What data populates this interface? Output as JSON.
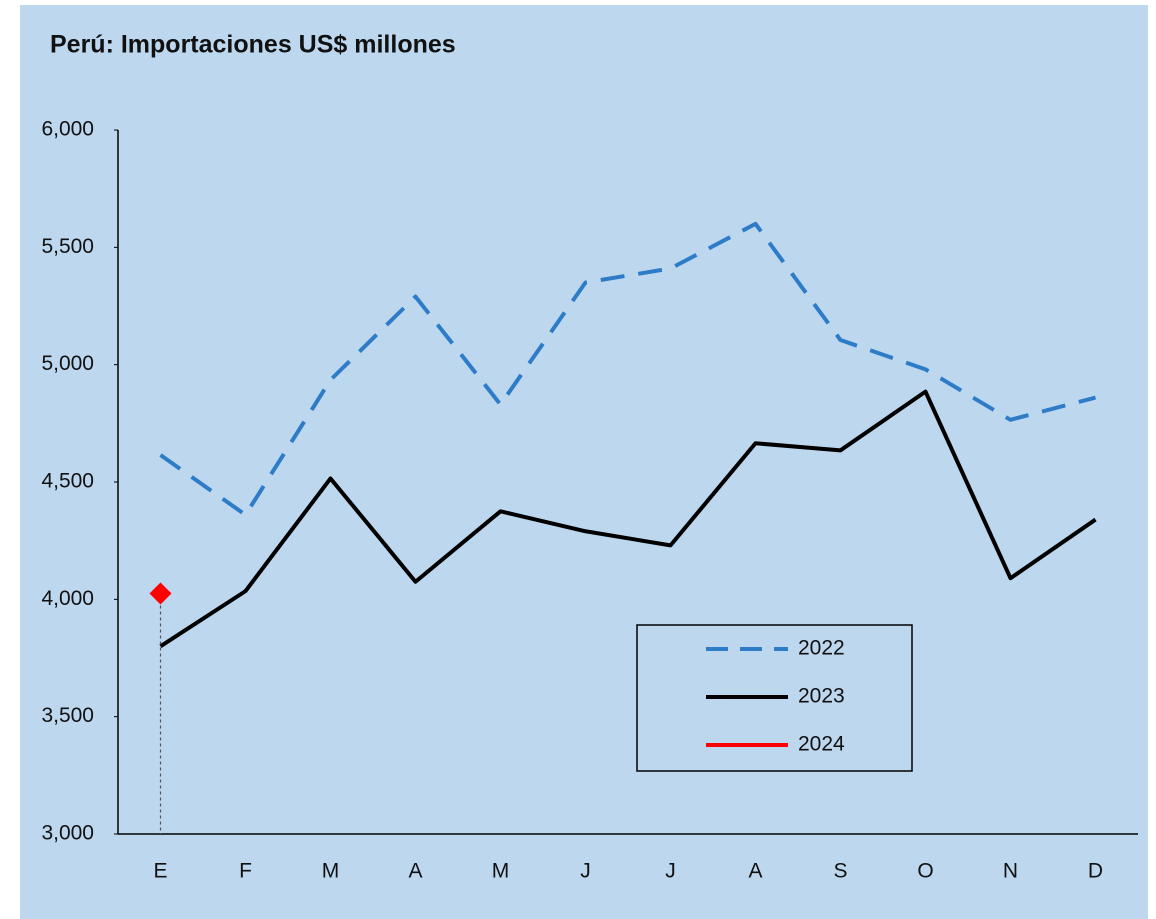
{
  "chart_data": {
    "type": "line",
    "title": "Perú: Importaciones US$ millones",
    "categories": [
      "E",
      "F",
      "M",
      "A",
      "M",
      "J",
      "J",
      "A",
      "S",
      "O",
      "N",
      "D"
    ],
    "series": [
      {
        "name": "2022",
        "color": "#2e7cc8",
        "dashed": true,
        "values": [
          4615,
          4360,
          4935,
          5290,
          4830,
          5350,
          5410,
          5600,
          5105,
          4980,
          4765,
          4860
        ]
      },
      {
        "name": "2023",
        "color": "#000000",
        "values": [
          3800,
          4035,
          4515,
          4075,
          4375,
          4290,
          4230,
          4665,
          4635,
          4885,
          4090,
          4340
        ]
      },
      {
        "name": "2024",
        "color": "#ff0000",
        "marker": "diamond",
        "values": [
          4025,
          null,
          null,
          null,
          null,
          null,
          null,
          null,
          null,
          null,
          null,
          null
        ]
      }
    ],
    "ylim": [
      3000,
      6000
    ],
    "yticks": [
      {
        "value": 3000,
        "label": "3,000"
      },
      {
        "value": 3500,
        "label": "3,500"
      },
      {
        "value": 4000,
        "label": "4,000"
      },
      {
        "value": 4500,
        "label": "4,500"
      },
      {
        "value": 5000,
        "label": "5,000"
      },
      {
        "value": 5500,
        "label": "5,500"
      },
      {
        "value": 6000,
        "label": "6,000"
      }
    ],
    "drop_lines": true,
    "grid": false
  }
}
